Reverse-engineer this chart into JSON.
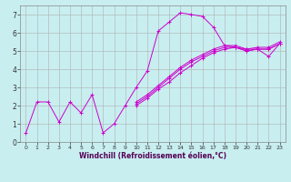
{
  "title": "",
  "xlabel": "Windchill (Refroidissement éolien,°C)",
  "ylabel": "",
  "background_color": "#c8eef0",
  "grid_color": "#b0b0b0",
  "line_color": "#cc00cc",
  "xlim": [
    -0.5,
    23.5
  ],
  "ylim": [
    0,
    7.5
  ],
  "xticks": [
    0,
    1,
    2,
    3,
    4,
    5,
    6,
    7,
    8,
    9,
    10,
    11,
    12,
    13,
    14,
    15,
    16,
    17,
    18,
    19,
    20,
    21,
    22,
    23
  ],
  "yticks": [
    0,
    1,
    2,
    3,
    4,
    5,
    6,
    7
  ],
  "lines": [
    [
      0.5,
      2.2,
      2.2,
      1.1,
      2.2,
      1.6,
      2.6,
      0.5,
      1.0,
      2.0,
      3.0,
      3.9,
      6.1,
      6.6,
      7.1,
      7.0,
      6.9,
      6.3,
      5.3,
      5.2,
      5.1,
      5.1,
      4.7,
      5.4
    ],
    [
      null,
      null,
      null,
      null,
      null,
      null,
      null,
      null,
      null,
      null,
      2.1,
      2.5,
      3.0,
      3.5,
      4.0,
      4.4,
      4.7,
      5.0,
      5.2,
      5.2,
      5.0,
      5.1,
      5.1,
      5.4
    ],
    [
      null,
      null,
      null,
      null,
      null,
      null,
      null,
      null,
      null,
      null,
      2.0,
      2.4,
      2.9,
      3.3,
      3.8,
      4.2,
      4.6,
      4.9,
      5.1,
      5.2,
      5.0,
      5.1,
      5.1,
      5.4
    ],
    [
      null,
      null,
      null,
      null,
      null,
      null,
      null,
      null,
      null,
      null,
      2.2,
      2.6,
      3.1,
      3.6,
      4.1,
      4.5,
      4.8,
      5.1,
      5.3,
      5.3,
      5.1,
      5.2,
      5.2,
      5.5
    ]
  ],
  "xlabel_fontsize": 5.5,
  "tick_fontsize_x": 4.5,
  "tick_fontsize_y": 5.5
}
